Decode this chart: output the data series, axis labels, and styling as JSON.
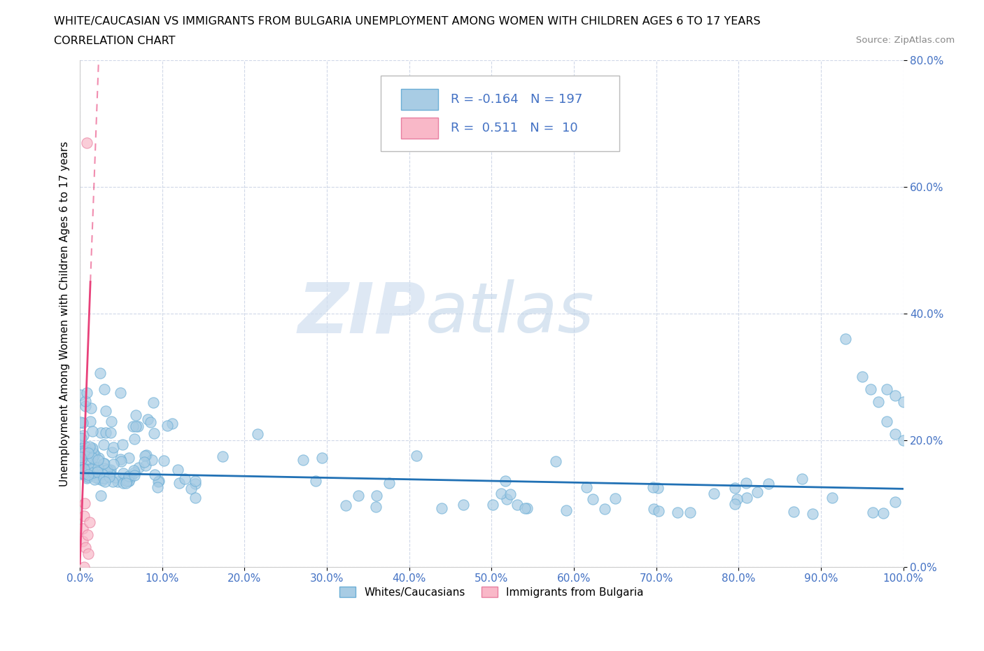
{
  "title_line1": "WHITE/CAUCASIAN VS IMMIGRANTS FROM BULGARIA UNEMPLOYMENT AMONG WOMEN WITH CHILDREN AGES 6 TO 17 YEARS",
  "title_line2": "CORRELATION CHART",
  "source": "Source: ZipAtlas.com",
  "ylabel": "Unemployment Among Women with Children Ages 6 to 17 years",
  "xlim": [
    0,
    1.0
  ],
  "ylim": [
    0,
    0.8
  ],
  "xticks": [
    0.0,
    0.1,
    0.2,
    0.3,
    0.4,
    0.5,
    0.6,
    0.7,
    0.8,
    0.9,
    1.0
  ],
  "xticklabels": [
    "0.0%",
    "10.0%",
    "20.0%",
    "30.0%",
    "40.0%",
    "50.0%",
    "60.0%",
    "70.0%",
    "80.0%",
    "90.0%",
    "100.0%"
  ],
  "yticks": [
    0.0,
    0.2,
    0.4,
    0.6,
    0.8
  ],
  "yticklabels": [
    "0.0%",
    "20.0%",
    "40.0%",
    "60.0%",
    "80.0%"
  ],
  "blue_color": "#a8cce4",
  "blue_edge_color": "#6baed6",
  "pink_color": "#f9b8c8",
  "pink_edge_color": "#e87fa0",
  "blue_line_color": "#2171b5",
  "pink_line_color": "#e8417a",
  "grid_color": "#d0d8e8",
  "tick_color": "#4472c4",
  "watermark_zip": "ZIP",
  "watermark_atlas": "atlas",
  "legend_R1": "-0.164",
  "legend_N1": "197",
  "legend_R2": "0.511",
  "legend_N2": "10",
  "blue_reg_slope": -0.025,
  "blue_reg_intercept": 0.148,
  "pink_reg_slope": 35.0,
  "pink_reg_intercept": 0.005
}
